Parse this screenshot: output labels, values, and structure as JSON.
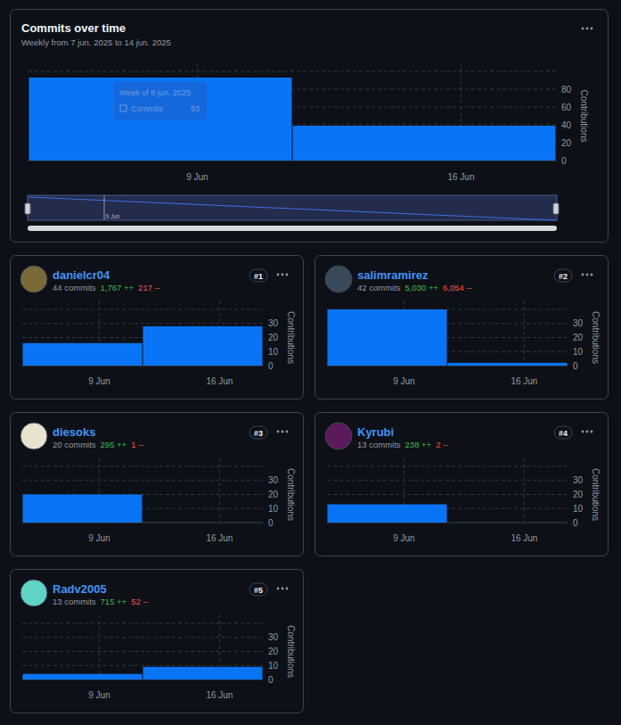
{
  "chart_data": [
    {
      "type": "bar",
      "title": "Commits over time",
      "subtitle": "Weekly from 7 jun. 2025 to 14 jun. 2025",
      "categories": [
        "9 Jun",
        "16 Jun"
      ],
      "values": [
        93,
        39
      ],
      "color": "#0a74f7",
      "ylabel": "Contributions",
      "ylim": [
        0,
        100
      ],
      "yticks": [
        0,
        20,
        40,
        60,
        80
      ],
      "grid": true,
      "annotations": [
        "Week of 8 jun. 2025",
        "Commits",
        "93",
        "9 Jun"
      ]
    },
    {
      "type": "bar",
      "title": "danielcr04",
      "annotations": [
        "#1",
        "44 commits",
        "1,767 ++",
        "217 --"
      ],
      "categories": [
        "9 Jun",
        "16 Jun"
      ],
      "values": [
        16,
        28
      ],
      "color": "#0a74f7",
      "ylabel": "Contributions",
      "ylim": [
        0,
        40
      ],
      "yticks": [
        0,
        10,
        20,
        30
      ],
      "grid": true
    },
    {
      "type": "bar",
      "title": "salimramirez",
      "annotations": [
        "#2",
        "42 commits",
        "5,030 ++",
        "6,054 --"
      ],
      "categories": [
        "9 Jun",
        "16 Jun"
      ],
      "values": [
        40,
        2
      ],
      "color": "#0a74f7",
      "ylabel": "Contributions",
      "ylim": [
        0,
        40
      ],
      "yticks": [
        0,
        10,
        20,
        30
      ],
      "grid": true
    },
    {
      "type": "bar",
      "title": "diesoks",
      "annotations": [
        "#3",
        "20 commits",
        "295 ++",
        "1 --"
      ],
      "categories": [
        "9 Jun",
        "16 Jun"
      ],
      "values": [
        20,
        0
      ],
      "color": "#0a74f7",
      "ylabel": "Contributions",
      "ylim": [
        0,
        40
      ],
      "yticks": [
        0,
        10,
        20,
        30
      ],
      "grid": true
    },
    {
      "type": "bar",
      "title": "Kyrubi",
      "annotations": [
        "#4",
        "13 commits",
        "238 ++",
        "2 --"
      ],
      "categories": [
        "9 Jun",
        "16 Jun"
      ],
      "values": [
        13,
        0
      ],
      "color": "#0a74f7",
      "ylabel": "Contributions",
      "ylim": [
        0,
        40
      ],
      "yticks": [
        0,
        10,
        20,
        30
      ],
      "grid": true
    },
    {
      "type": "bar",
      "title": "Radv2005",
      "annotations": [
        "#5",
        "13 commits",
        "715 ++",
        "52 --"
      ],
      "categories": [
        "9 Jun",
        "16 Jun"
      ],
      "values": [
        4,
        9
      ],
      "color": "#0a74f7",
      "ylabel": "Contributions",
      "ylim": [
        0,
        40
      ],
      "yticks": [
        0,
        10,
        20,
        30
      ],
      "grid": true
    }
  ]
}
